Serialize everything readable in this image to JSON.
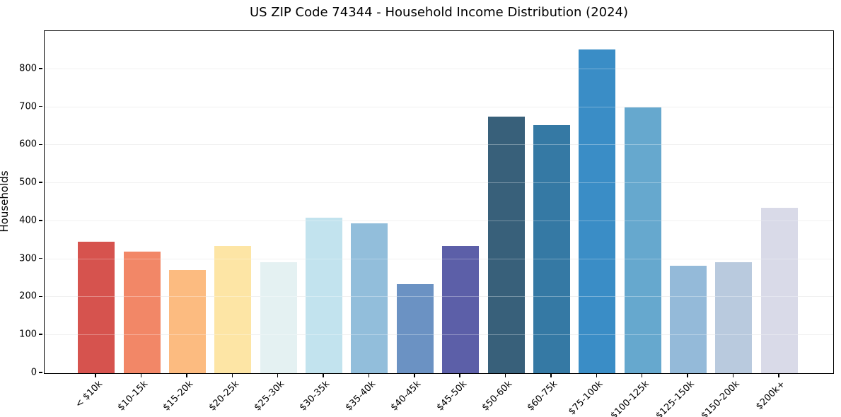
{
  "chart_data": {
    "type": "bar",
    "title": "US ZIP Code 74344 - Household Income Distribution (2024)",
    "xlabel": "",
    "ylabel": "Households",
    "categories": [
      "< $10k",
      "$10-15k",
      "$15-20k",
      "$20-25k",
      "$25-30k",
      "$30-35k",
      "$35-40k",
      "$40-45k",
      "$45-50k",
      "$50-60k",
      "$60-75k",
      "$75-100k",
      "$100-125k",
      "$125-150k",
      "$150-200k",
      "$200k+"
    ],
    "values": [
      345,
      320,
      272,
      335,
      292,
      410,
      395,
      235,
      335,
      675,
      652,
      852,
      700,
      282,
      292,
      435
    ],
    "bar_colors": [
      "#d6534e",
      "#f28767",
      "#fcbb80",
      "#fde5a5",
      "#e4f1f2",
      "#c2e3ee",
      "#92bedb",
      "#6b92c3",
      "#5c5fa8",
      "#38607a",
      "#3579a4",
      "#3a8dc6",
      "#66a8ce",
      "#94bad9",
      "#b9cade",
      "#d9dae8"
    ],
    "yticks": [
      0,
      100,
      200,
      300,
      400,
      500,
      600,
      700,
      800
    ],
    "ylim": [
      0,
      900
    ],
    "grid": "horizontal",
    "gridline_color": "#ebebeb",
    "axis_color": "#000000",
    "background_color": "#ffffff",
    "legend": "none"
  }
}
